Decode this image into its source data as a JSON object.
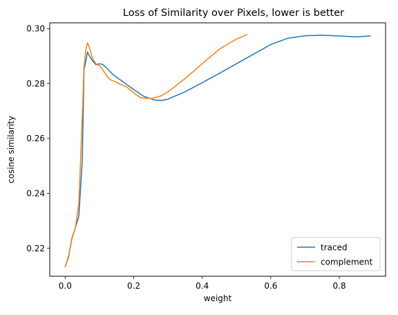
{
  "chart_data": {
    "type": "line",
    "title": "Loss of Similarity over Pixels, lower is better",
    "xlabel": "weight",
    "ylabel": "cosine similarity",
    "xlim": [
      -0.045,
      0.935
    ],
    "ylim": [
      0.2098,
      0.3021
    ],
    "xticks": [
      0.0,
      0.2,
      0.4,
      0.6,
      0.8
    ],
    "xtick_labels": [
      "0.0",
      "0.2",
      "0.4",
      "0.6",
      "0.8"
    ],
    "yticks": [
      0.22,
      0.24,
      0.26,
      0.28,
      0.3
    ],
    "ytick_labels": [
      "0.22",
      "0.24",
      "0.26",
      "0.28",
      "0.30"
    ],
    "grid": false,
    "legend_position": "lower-right",
    "series": [
      {
        "name": "traced",
        "color": "#1f77b4",
        "x": [
          0.0,
          0.01,
          0.02,
          0.03,
          0.04,
          0.05,
          0.055,
          0.06,
          0.065,
          0.07,
          0.08,
          0.09,
          0.1,
          0.11,
          0.12,
          0.13,
          0.14,
          0.15,
          0.17,
          0.2,
          0.23,
          0.26,
          0.28,
          0.3,
          0.35,
          0.4,
          0.45,
          0.5,
          0.55,
          0.6,
          0.65,
          0.7,
          0.75,
          0.8,
          0.85,
          0.89
        ],
        "y": [
          0.2133,
          0.2168,
          0.2238,
          0.2275,
          0.2318,
          0.252,
          0.285,
          0.288,
          0.2915,
          0.2902,
          0.2882,
          0.2868,
          0.2872,
          0.2869,
          0.2858,
          0.2845,
          0.2832,
          0.2823,
          0.2805,
          0.2778,
          0.2753,
          0.274,
          0.2738,
          0.2743,
          0.277,
          0.2803,
          0.2837,
          0.2872,
          0.2907,
          0.2942,
          0.2965,
          0.2974,
          0.2976,
          0.2973,
          0.297,
          0.2973
        ]
      },
      {
        "name": "complement",
        "color": "#ff7f0e",
        "x": [
          0.0,
          0.01,
          0.02,
          0.03,
          0.04,
          0.05,
          0.055,
          0.06,
          0.065,
          0.07,
          0.08,
          0.09,
          0.1,
          0.11,
          0.12,
          0.13,
          0.14,
          0.15,
          0.16,
          0.18,
          0.2,
          0.22,
          0.25,
          0.28,
          0.3,
          0.35,
          0.4,
          0.45,
          0.5,
          0.53
        ],
        "y": [
          0.2133,
          0.2172,
          0.2235,
          0.2275,
          0.2365,
          0.268,
          0.286,
          0.292,
          0.2948,
          0.2935,
          0.289,
          0.2872,
          0.2865,
          0.285,
          0.283,
          0.2815,
          0.281,
          0.2804,
          0.2798,
          0.2787,
          0.2766,
          0.2748,
          0.2745,
          0.2755,
          0.277,
          0.2818,
          0.2872,
          0.2925,
          0.2962,
          0.2978
        ]
      }
    ]
  }
}
